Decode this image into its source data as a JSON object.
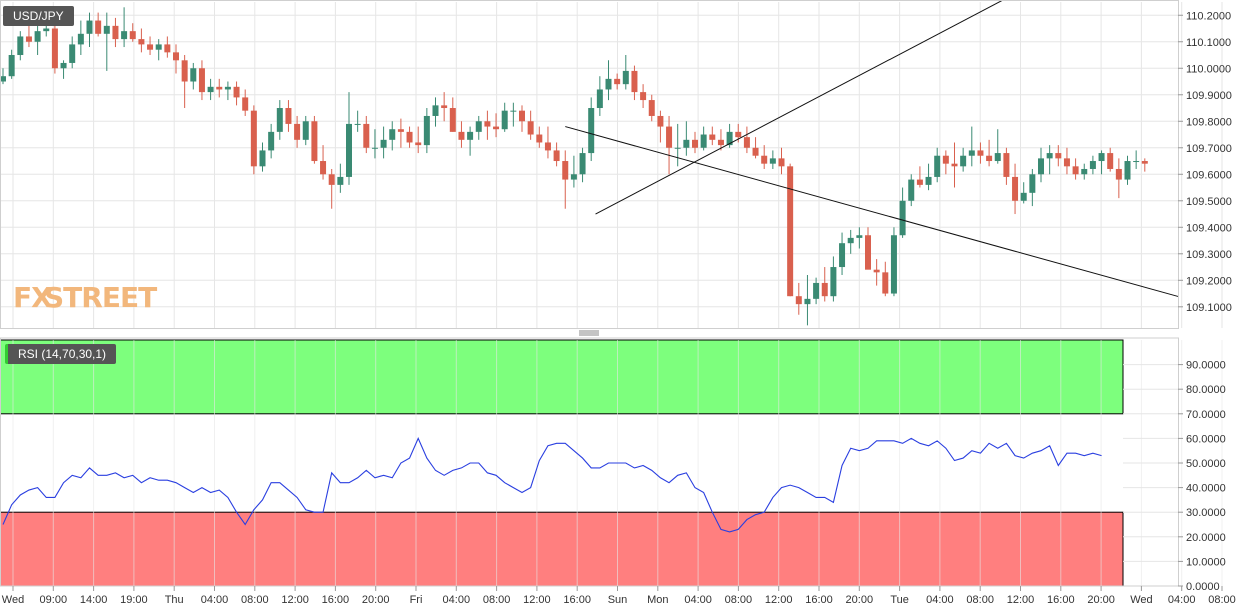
{
  "symbol_label": "USD/JPY",
  "indicator_label": "RSI (14,70,30,1)",
  "logo": {
    "text_fx": "FX",
    "text_street": "STREET"
  },
  "colors": {
    "up": "#3a8a73",
    "down": "#d9604e",
    "rsi_line": "#2a3fe0",
    "overbought_zone": "#7dff7d",
    "oversold_zone": "#ff7f7f",
    "grid": "#e6e6e6"
  },
  "chart_data": [
    {
      "type": "candlestick",
      "series": [
        {
          "name": "USD/JPY"
        }
      ],
      "ylim": [
        109.02,
        110.25
      ],
      "yticks": [
        "110.2000",
        "110.1000",
        "110.0000",
        "109.9000",
        "109.8000",
        "109.7000",
        "109.6000",
        "109.5000",
        "109.4000",
        "109.3000",
        "109.2000",
        "109.1000"
      ],
      "x_categories": [
        "Wed",
        "09:00",
        "14:00",
        "19:00",
        "Thu",
        "04:00",
        "08:00",
        "12:00",
        "16:00",
        "20:00",
        "Fri",
        "04:00",
        "08:00",
        "12:00",
        "16:00",
        "Sun",
        "Mon",
        "04:00",
        "08:00",
        "12:00",
        "16:00",
        "20:00",
        "Tue",
        "04:00",
        "08:00",
        "12:00",
        "16:00",
        "20:00",
        "Wed",
        "04:00",
        "08:00"
      ],
      "candles": [
        [
          109.95,
          110.0,
          109.94,
          109.97
        ],
        [
          109.97,
          110.07,
          109.96,
          110.05
        ],
        [
          110.05,
          110.14,
          110.03,
          110.12
        ],
        [
          110.12,
          110.17,
          110.08,
          110.1
        ],
        [
          110.1,
          110.16,
          110.05,
          110.14
        ],
        [
          110.14,
          110.2,
          110.12,
          110.15
        ],
        [
          110.15,
          110.16,
          109.98,
          110.0
        ],
        [
          110.0,
          110.03,
          109.96,
          110.02
        ],
        [
          110.02,
          110.12,
          110.0,
          110.09
        ],
        [
          110.09,
          110.18,
          110.05,
          110.13
        ],
        [
          110.13,
          110.21,
          110.08,
          110.18
        ],
        [
          110.18,
          110.21,
          110.12,
          110.13
        ],
        [
          110.13,
          110.21,
          109.99,
          110.16
        ],
        [
          110.16,
          110.19,
          110.08,
          110.11
        ],
        [
          110.11,
          110.23,
          110.08,
          110.14
        ],
        [
          110.14,
          110.17,
          110.1,
          110.11
        ],
        [
          110.11,
          110.15,
          110.06,
          110.09
        ],
        [
          110.09,
          110.12,
          110.05,
          110.07
        ],
        [
          110.07,
          110.11,
          110.03,
          110.09
        ],
        [
          110.09,
          110.12,
          110.04,
          110.06
        ],
        [
          110.06,
          110.09,
          109.98,
          110.03
        ],
        [
          110.03,
          110.05,
          109.85,
          109.95
        ],
        [
          109.95,
          110.02,
          109.92,
          110.0
        ],
        [
          110.0,
          110.03,
          109.88,
          109.91
        ],
        [
          109.91,
          109.96,
          109.88,
          109.93
        ],
        [
          109.93,
          109.96,
          109.89,
          109.92
        ],
        [
          109.92,
          109.95,
          109.88,
          109.93
        ],
        [
          109.93,
          109.95,
          109.86,
          109.89
        ],
        [
          109.89,
          109.92,
          109.82,
          109.84
        ],
        [
          109.84,
          109.86,
          109.6,
          109.63
        ],
        [
          109.63,
          109.72,
          109.61,
          109.69
        ],
        [
          109.69,
          109.79,
          109.66,
          109.76
        ],
        [
          109.76,
          109.88,
          109.73,
          109.85
        ],
        [
          109.85,
          109.88,
          109.76,
          109.79
        ],
        [
          109.79,
          109.82,
          109.7,
          109.73
        ],
        [
          109.73,
          109.82,
          109.71,
          109.8
        ],
        [
          109.8,
          109.82,
          109.64,
          109.65
        ],
        [
          109.65,
          109.71,
          109.58,
          109.6
        ],
        [
          109.6,
          109.62,
          109.47,
          109.56
        ],
        [
          109.56,
          109.64,
          109.53,
          109.59
        ],
        [
          109.59,
          109.91,
          109.56,
          109.79
        ],
        [
          109.79,
          109.84,
          109.76,
          109.79
        ],
        [
          109.79,
          109.82,
          109.68,
          109.7
        ],
        [
          109.7,
          109.77,
          109.66,
          109.7
        ],
        [
          109.7,
          109.78,
          109.66,
          109.73
        ],
        [
          109.73,
          109.8,
          109.69,
          109.77
        ],
        [
          109.77,
          109.81,
          109.7,
          109.76
        ],
        [
          109.76,
          109.78,
          109.7,
          109.72
        ],
        [
          109.72,
          109.78,
          109.68,
          109.71
        ],
        [
          109.71,
          109.85,
          109.68,
          109.82
        ],
        [
          109.82,
          109.89,
          109.78,
          109.86
        ],
        [
          109.86,
          109.91,
          109.8,
          109.85
        ],
        [
          109.85,
          109.89,
          109.76,
          109.76
        ],
        [
          109.76,
          109.8,
          109.7,
          109.73
        ],
        [
          109.73,
          109.78,
          109.67,
          109.76
        ],
        [
          109.76,
          109.82,
          109.73,
          109.8
        ],
        [
          109.8,
          109.84,
          109.73,
          109.78
        ],
        [
          109.78,
          109.83,
          109.74,
          109.77
        ],
        [
          109.77,
          109.87,
          109.76,
          109.84
        ],
        [
          109.84,
          109.87,
          109.78,
          109.84
        ],
        [
          109.84,
          109.86,
          109.76,
          109.8
        ],
        [
          109.8,
          109.84,
          109.73,
          109.75
        ],
        [
          109.75,
          109.78,
          109.7,
          109.72
        ],
        [
          109.72,
          109.78,
          109.66,
          109.69
        ],
        [
          109.69,
          109.72,
          109.63,
          109.65
        ],
        [
          109.65,
          109.69,
          109.47,
          109.58
        ],
        [
          109.58,
          109.67,
          109.55,
          109.6
        ],
        [
          109.6,
          109.7,
          109.57,
          109.68
        ],
        [
          109.68,
          109.89,
          109.65,
          109.85
        ],
        [
          109.85,
          109.97,
          109.82,
          109.92
        ],
        [
          109.92,
          110.03,
          109.88,
          109.96
        ],
        [
          109.96,
          109.98,
          109.92,
          109.94
        ],
        [
          109.94,
          110.05,
          109.92,
          109.99
        ],
        [
          109.99,
          110.01,
          109.88,
          109.91
        ],
        [
          109.91,
          109.94,
          109.85,
          109.88
        ],
        [
          109.88,
          109.9,
          109.8,
          109.82
        ],
        [
          109.82,
          109.84,
          109.72,
          109.78
        ],
        [
          109.78,
          109.82,
          109.6,
          109.7
        ],
        [
          109.7,
          109.79,
          109.63,
          109.7
        ],
        [
          109.7,
          109.8,
          109.67,
          109.73
        ],
        [
          109.73,
          109.76,
          109.68,
          109.7
        ],
        [
          109.7,
          109.78,
          109.69,
          109.75
        ],
        [
          109.75,
          109.78,
          109.71,
          109.73
        ],
        [
          109.73,
          109.77,
          109.69,
          109.71
        ],
        [
          109.71,
          109.79,
          109.7,
          109.76
        ],
        [
          109.76,
          109.79,
          109.72,
          109.74
        ],
        [
          109.74,
          109.78,
          109.68,
          109.7
        ],
        [
          109.7,
          109.74,
          109.66,
          109.67
        ],
        [
          109.67,
          109.71,
          109.62,
          109.64
        ],
        [
          109.64,
          109.69,
          109.62,
          109.66
        ],
        [
          109.66,
          109.7,
          109.6,
          109.63
        ],
        [
          109.63,
          109.64,
          109.14,
          109.14
        ],
        [
          109.14,
          109.19,
          109.07,
          109.11
        ],
        [
          109.11,
          109.22,
          109.03,
          109.13
        ],
        [
          109.13,
          109.21,
          109.11,
          109.19
        ],
        [
          109.19,
          109.25,
          109.12,
          109.14
        ],
        [
          109.14,
          109.29,
          109.12,
          109.25
        ],
        [
          109.25,
          109.38,
          109.22,
          109.34
        ],
        [
          109.34,
          109.39,
          109.3,
          109.36
        ],
        [
          109.36,
          109.4,
          109.32,
          109.37
        ],
        [
          109.37,
          109.4,
          109.25,
          109.24
        ],
        [
          109.24,
          109.28,
          109.18,
          109.23
        ],
        [
          109.23,
          109.27,
          109.14,
          109.15
        ],
        [
          109.15,
          109.4,
          109.14,
          109.37
        ],
        [
          109.37,
          109.55,
          109.36,
          109.5
        ],
        [
          109.5,
          109.6,
          109.48,
          109.58
        ],
        [
          109.58,
          109.63,
          109.55,
          109.56
        ],
        [
          109.56,
          109.64,
          109.54,
          109.59
        ],
        [
          109.59,
          109.7,
          109.57,
          109.67
        ],
        [
          109.67,
          109.69,
          109.6,
          109.64
        ],
        [
          109.64,
          109.72,
          109.55,
          109.63
        ],
        [
          109.63,
          109.7,
          109.61,
          109.67
        ],
        [
          109.67,
          109.78,
          109.63,
          109.69
        ],
        [
          109.69,
          109.72,
          109.64,
          109.67
        ],
        [
          109.67,
          109.73,
          109.63,
          109.65
        ],
        [
          109.65,
          109.77,
          109.64,
          109.68
        ],
        [
          109.68,
          109.7,
          109.56,
          109.59
        ],
        [
          109.59,
          109.64,
          109.45,
          109.5
        ],
        [
          109.5,
          109.57,
          109.49,
          109.53
        ],
        [
          109.53,
          109.62,
          109.48,
          109.6
        ],
        [
          109.6,
          109.7,
          109.57,
          109.66
        ],
        [
          109.66,
          109.71,
          109.6,
          109.68
        ],
        [
          109.68,
          109.71,
          109.63,
          109.66
        ],
        [
          109.66,
          109.7,
          109.6,
          109.63
        ],
        [
          109.63,
          109.66,
          109.58,
          109.6
        ],
        [
          109.6,
          109.64,
          109.58,
          109.62
        ],
        [
          109.62,
          109.67,
          109.6,
          109.65
        ],
        [
          109.65,
          109.69,
          109.6,
          109.68
        ],
        [
          109.68,
          109.7,
          109.61,
          109.62
        ],
        [
          109.62,
          109.66,
          109.51,
          109.58
        ],
        [
          109.58,
          109.67,
          109.56,
          109.65
        ],
        [
          109.65,
          109.69,
          109.62,
          109.65
        ],
        [
          109.65,
          109.66,
          109.61,
          109.64
        ]
      ],
      "trendlines": [
        {
          "points": [
            [
              65.0,
              109.78
            ],
            [
              75.5,
              109.685
            ]
          ]
        },
        {
          "points": [
            [
              68.5,
              109.45
            ],
            [
              75.5,
              109.57
            ]
          ]
        }
      ]
    },
    {
      "type": "line",
      "series": [
        {
          "name": "RSI (14,70,30,1)"
        }
      ],
      "ylim": [
        0,
        100
      ],
      "yticks": [
        "90.0000",
        "80.0000",
        "70.0000",
        "60.0000",
        "50.0000",
        "40.0000",
        "30.0000",
        "20.0000",
        "10.0000",
        "0.0000"
      ],
      "zones": {
        "overbought": [
          70,
          100
        ],
        "oversold": [
          0,
          30
        ]
      },
      "values": [
        25,
        33,
        37,
        39,
        40,
        36,
        36,
        42,
        45,
        44,
        48,
        45,
        45,
        46,
        44,
        45,
        42,
        44,
        43,
        43,
        42,
        40,
        38,
        40,
        38,
        39,
        36,
        30,
        25,
        31,
        35,
        42,
        42,
        39,
        36,
        31,
        30,
        30,
        46,
        42,
        42,
        44,
        47,
        44,
        45,
        44,
        50,
        52,
        60,
        52,
        47,
        45,
        47,
        48,
        50,
        50,
        46,
        45,
        42,
        40,
        38,
        40,
        51,
        57,
        58,
        58,
        55,
        52,
        48,
        48,
        50,
        50,
        50,
        48,
        49,
        47,
        44,
        42,
        45,
        46,
        40,
        38,
        30,
        23,
        22,
        23,
        27,
        29,
        30,
        36,
        40,
        41,
        40,
        38,
        36,
        36,
        34,
        49,
        56,
        55,
        56,
        59,
        59,
        59,
        58,
        60,
        58,
        57,
        59,
        56,
        51,
        52,
        55,
        54,
        58,
        56,
        58,
        53,
        52,
        54,
        55,
        57,
        49,
        54,
        54,
        53,
        54,
        53
      ]
    }
  ]
}
